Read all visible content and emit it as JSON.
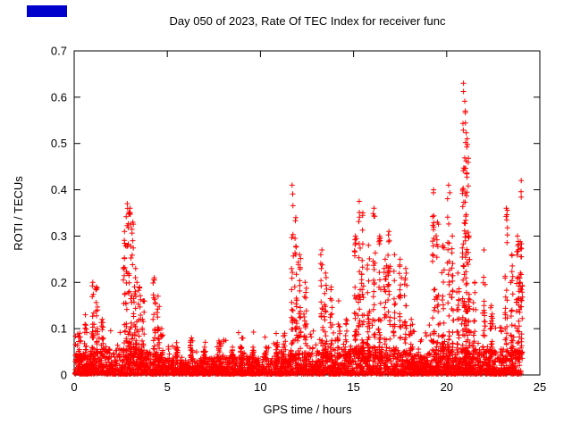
{
  "window": {
    "background": "#ffffff",
    "border_color": "#000000"
  },
  "logo": {
    "color": "#0000cc"
  },
  "chart_data": {
    "type": "scatter",
    "title": "Day 050 of 2023, Rate Of TEC Index for receiver func",
    "xlabel": "GPS time / hours",
    "ylabel": "ROTI / TECUs",
    "xlim": [
      0,
      25
    ],
    "ylim": [
      0,
      0.7
    ],
    "x_ticks": [
      0,
      5,
      10,
      15,
      20,
      25
    ],
    "y_ticks": [
      0,
      0.1,
      0.2,
      0.3,
      0.4,
      0.5,
      0.6,
      0.7
    ],
    "grid": false,
    "legend": "none",
    "marker": "plus",
    "marker_color": "#ff0000",
    "series_name": "ROTI",
    "baseline_band": {
      "description": "dense noise band of + markers hugging the x axis, thickness varies by hour",
      "max_per_hour": [
        0.045,
        0.05,
        0.055,
        0.06,
        0.05,
        0.035,
        0.03,
        0.035,
        0.035,
        0.04,
        0.035,
        0.04,
        0.045,
        0.05,
        0.045,
        0.055,
        0.06,
        0.06,
        0.045,
        0.05,
        0.06,
        0.055,
        0.05,
        0.055,
        0.05
      ]
    },
    "spikes": [
      [
        0.3,
        0.09
      ],
      [
        0.6,
        0.13
      ],
      [
        1.0,
        0.2
      ],
      [
        1.2,
        0.19
      ],
      [
        1.5,
        0.12
      ],
      [
        2.7,
        0.31
      ],
      [
        2.85,
        0.37
      ],
      [
        3.0,
        0.36
      ],
      [
        3.15,
        0.33
      ],
      [
        3.3,
        0.23
      ],
      [
        3.5,
        0.19
      ],
      [
        3.7,
        0.16
      ],
      [
        4.3,
        0.21
      ],
      [
        4.5,
        0.17
      ],
      [
        4.7,
        0.1
      ],
      [
        5.5,
        0.07
      ],
      [
        6.3,
        0.08
      ],
      [
        7.0,
        0.06
      ],
      [
        7.8,
        0.07
      ],
      [
        8.5,
        0.06
      ],
      [
        9.0,
        0.08
      ],
      [
        9.6,
        0.06
      ],
      [
        10.3,
        0.06
      ],
      [
        10.9,
        0.07
      ],
      [
        11.3,
        0.09
      ],
      [
        11.7,
        0.41
      ],
      [
        11.9,
        0.34
      ],
      [
        12.1,
        0.26
      ],
      [
        12.4,
        0.2
      ],
      [
        13.3,
        0.27
      ],
      [
        13.5,
        0.22
      ],
      [
        13.8,
        0.19
      ],
      [
        14.2,
        0.16
      ],
      [
        14.6,
        0.12
      ],
      [
        15.1,
        0.3
      ],
      [
        15.3,
        0.375
      ],
      [
        15.5,
        0.35
      ],
      [
        15.8,
        0.28
      ],
      [
        16.1,
        0.36
      ],
      [
        16.4,
        0.3
      ],
      [
        16.7,
        0.25
      ],
      [
        16.9,
        0.31
      ],
      [
        17.2,
        0.26
      ],
      [
        17.5,
        0.25
      ],
      [
        17.8,
        0.23
      ],
      [
        18.1,
        0.12
      ],
      [
        19.3,
        0.4
      ],
      [
        19.5,
        0.33
      ],
      [
        19.8,
        0.28
      ],
      [
        20.1,
        0.41
      ],
      [
        20.3,
        0.3
      ],
      [
        20.6,
        0.22
      ],
      [
        20.9,
        0.63
      ],
      [
        21.0,
        0.57
      ],
      [
        21.1,
        0.51
      ],
      [
        21.2,
        0.3
      ],
      [
        21.5,
        0.2
      ],
      [
        22.0,
        0.27
      ],
      [
        22.4,
        0.15
      ],
      [
        23.2,
        0.36
      ],
      [
        23.5,
        0.26
      ],
      [
        23.8,
        0.3
      ],
      [
        23.95,
        0.2
      ],
      [
        24.0,
        0.42
      ]
    ]
  }
}
